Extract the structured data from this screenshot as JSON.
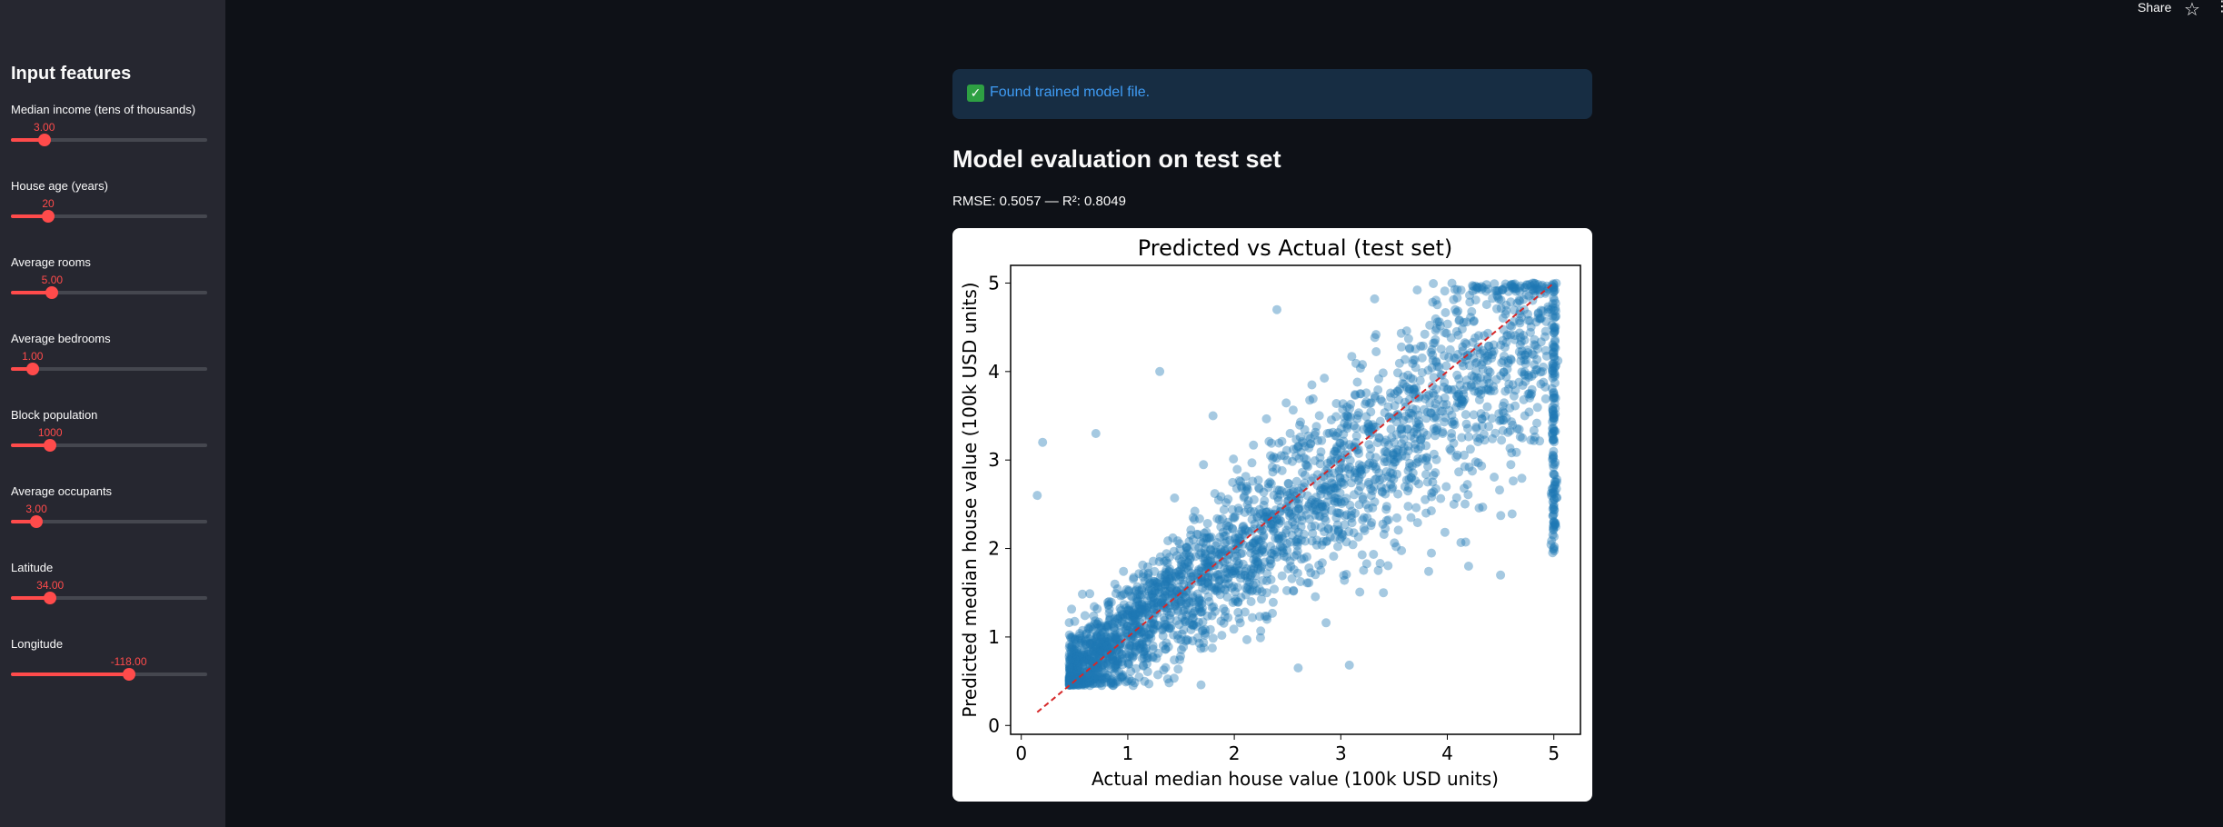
{
  "header": {
    "share_label": "Share",
    "icons": [
      "star-icon",
      "more-vertical-icon"
    ]
  },
  "sidebar": {
    "title": "Input features",
    "sliders": [
      {
        "label": "Median income (tens of thousands)",
        "value": "3.00",
        "level": 0.17
      },
      {
        "label": "House age (years)",
        "value": "20",
        "level": 0.19
      },
      {
        "label": "Average rooms",
        "value": "5.00",
        "level": 0.21
      },
      {
        "label": "Average bedrooms",
        "value": "1.00",
        "level": 0.11
      },
      {
        "label": "Block population",
        "value": "1000",
        "level": 0.2
      },
      {
        "label": "Average occupants",
        "value": "3.00",
        "level": 0.13
      },
      {
        "label": "Latitude",
        "value": "34.00",
        "level": 0.2
      },
      {
        "label": "Longitude",
        "value": "-118.00",
        "level": 0.6
      }
    ]
  },
  "alert": {
    "icon": "check-icon",
    "text": "Found trained model file."
  },
  "main": {
    "heading": "Model evaluation on test set",
    "metrics": "RMSE: 0.5057 — R²: 0.8049"
  },
  "colors": {
    "accent": "#ff4b4b",
    "point": "#1f77b4",
    "reference_line": "#d62728"
  },
  "chart_data": {
    "type": "scatter",
    "title": "Predicted vs Actual (test set)",
    "xlabel": "Actual median house value (100k USD units)",
    "ylabel": "Predicted median house value (100k USD units)",
    "xlim": [
      -0.1,
      5.25
    ],
    "ylim": [
      -0.1,
      5.2
    ],
    "xticks": [
      "0",
      "1",
      "2",
      "3",
      "4",
      "5"
    ],
    "yticks": [
      "0",
      "1",
      "2",
      "3",
      "4",
      "5"
    ],
    "grid": false,
    "reference_line": {
      "from": [
        0.15,
        0.15
      ],
      "to": [
        5.0,
        5.0
      ],
      "style": "dashed"
    },
    "points_description_sample": [
      [
        0.2,
        3.2
      ],
      [
        0.15,
        2.6
      ],
      [
        0.9,
        0.85
      ],
      [
        1.0,
        1.3
      ],
      [
        1.5,
        1.4
      ],
      [
        2.0,
        1.9
      ],
      [
        2.5,
        2.6
      ],
      [
        3.0,
        3.0
      ],
      [
        3.5,
        3.2
      ],
      [
        4.0,
        3.8
      ],
      [
        4.5,
        4.3
      ],
      [
        5.0,
        4.9
      ],
      [
        5.0,
        2.0
      ],
      [
        5.0,
        3.5
      ],
      [
        4.2,
        1.8
      ],
      [
        3.4,
        1.5
      ],
      [
        2.4,
        4.7
      ],
      [
        1.3,
        4.0
      ],
      [
        2.6,
        0.65
      ],
      [
        0.7,
        3.3
      ],
      [
        4.8,
        5.0
      ],
      [
        3.8,
        2.4
      ],
      [
        1.8,
        3.5
      ],
      [
        4.5,
        1.7
      ]
    ]
  }
}
